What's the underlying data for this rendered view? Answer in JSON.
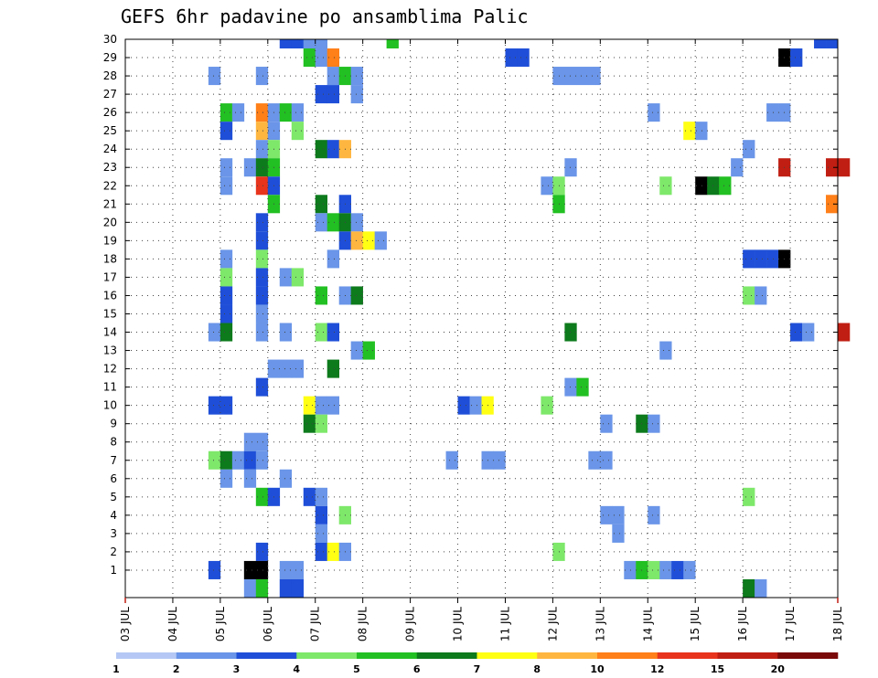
{
  "chart_data": {
    "type": "heatmap",
    "title": "GEFS 6hr padavine po ansamblima Palic",
    "x_tick_labels": [
      "03 JUL",
      "04 JUL",
      "05 JUL",
      "06 JUL",
      "07 JUL",
      "08 JUL",
      "09 JUL",
      "10 JUL",
      "11 JUL",
      "12 JUL",
      "13 JUL",
      "14 JUL",
      "15 JUL",
      "16 JUL",
      "17 JUL",
      "18 JUL"
    ],
    "y_tick_labels": [
      "1",
      "2",
      "3",
      "4",
      "5",
      "6",
      "7",
      "8",
      "9",
      "10",
      "11",
      "12",
      "13",
      "14",
      "15",
      "16",
      "17",
      "18",
      "19",
      "20",
      "21",
      "22",
      "23",
      "24",
      "25",
      "26",
      "27",
      "28",
      "29",
      "30"
    ],
    "y_range": [
      0,
      30
    ],
    "step_hours": 6,
    "grid": "dotted",
    "legend": {
      "placement": "bottom",
      "boundaries": [
        "1",
        "2",
        "3",
        "4",
        "5",
        "6",
        "7",
        "8",
        "10",
        "12",
        "15",
        "20"
      ],
      "colors": [
        "#b5c8f5",
        "#6a95e8",
        "#1f4fd8",
        "#7ee86a",
        "#22c022",
        "#0d7a1c",
        "#ffff14",
        "#ffb640",
        "#ff7f18",
        "#e8341c",
        "#c01e12",
        "#7a0909"
      ]
    },
    "cells": [
      [
        30,
        13,
        2
      ],
      [
        30,
        14,
        2
      ],
      [
        30,
        15,
        1
      ],
      [
        30,
        16,
        1
      ],
      [
        30,
        22,
        4
      ],
      [
        30,
        58,
        2
      ],
      [
        30,
        59,
        2
      ],
      [
        29,
        15,
        4
      ],
      [
        29,
        16,
        1
      ],
      [
        29,
        17,
        8
      ],
      [
        29,
        32,
        2
      ],
      [
        29,
        33,
        2
      ],
      [
        29,
        55,
        12
      ],
      [
        29,
        56,
        2
      ],
      [
        28,
        7,
        1
      ],
      [
        28,
        11,
        1
      ],
      [
        28,
        17,
        1
      ],
      [
        28,
        18,
        4
      ],
      [
        28,
        19,
        1
      ],
      [
        28,
        36,
        1
      ],
      [
        28,
        37,
        1
      ],
      [
        28,
        38,
        1
      ],
      [
        28,
        39,
        1
      ],
      [
        27,
        16,
        2
      ],
      [
        27,
        17,
        2
      ],
      [
        27,
        19,
        1
      ],
      [
        26,
        8,
        4
      ],
      [
        26,
        9,
        1
      ],
      [
        26,
        11,
        8
      ],
      [
        26,
        12,
        1
      ],
      [
        26,
        13,
        4
      ],
      [
        26,
        14,
        1
      ],
      [
        26,
        44,
        1
      ],
      [
        26,
        54,
        1
      ],
      [
        26,
        55,
        1
      ],
      [
        25,
        8,
        2
      ],
      [
        25,
        11,
        7
      ],
      [
        25,
        12,
        1
      ],
      [
        25,
        14,
        3
      ],
      [
        25,
        47,
        6
      ],
      [
        25,
        48,
        1
      ],
      [
        24,
        11,
        1
      ],
      [
        24,
        12,
        3
      ],
      [
        24,
        16,
        5
      ],
      [
        24,
        17,
        2
      ],
      [
        24,
        18,
        7
      ],
      [
        24,
        52,
        1
      ],
      [
        23,
        8,
        1
      ],
      [
        23,
        10,
        1
      ],
      [
        23,
        11,
        5
      ],
      [
        23,
        12,
        4
      ],
      [
        23,
        37,
        1
      ],
      [
        23,
        51,
        1
      ],
      [
        23,
        55,
        10
      ],
      [
        23,
        59,
        10
      ],
      [
        23,
        60,
        10
      ],
      [
        22,
        8,
        1
      ],
      [
        22,
        11,
        9
      ],
      [
        22,
        12,
        2
      ],
      [
        22,
        35,
        1
      ],
      [
        22,
        36,
        3
      ],
      [
        22,
        45,
        3
      ],
      [
        22,
        48,
        12
      ],
      [
        22,
        49,
        5
      ],
      [
        22,
        50,
        4
      ],
      [
        21,
        12,
        4
      ],
      [
        21,
        16,
        5
      ],
      [
        21,
        18,
        2
      ],
      [
        21,
        36,
        4
      ],
      [
        21,
        59,
        8
      ],
      [
        20,
        11,
        2
      ],
      [
        20,
        16,
        1
      ],
      [
        20,
        17,
        4
      ],
      [
        20,
        18,
        5
      ],
      [
        20,
        19,
        1
      ],
      [
        19,
        11,
        2
      ],
      [
        19,
        18,
        2
      ],
      [
        19,
        19,
        7
      ],
      [
        19,
        20,
        6
      ],
      [
        19,
        21,
        1
      ],
      [
        18,
        8,
        1
      ],
      [
        18,
        11,
        3
      ],
      [
        18,
        17,
        1
      ],
      [
        18,
        52,
        2
      ],
      [
        18,
        53,
        2
      ],
      [
        18,
        54,
        2
      ],
      [
        18,
        55,
        12
      ],
      [
        17,
        8,
        3
      ],
      [
        17,
        11,
        2
      ],
      [
        17,
        13,
        1
      ],
      [
        17,
        14,
        3
      ],
      [
        16,
        8,
        2
      ],
      [
        16,
        11,
        2
      ],
      [
        16,
        16,
        4
      ],
      [
        16,
        18,
        1
      ],
      [
        16,
        19,
        5
      ],
      [
        16,
        52,
        3
      ],
      [
        16,
        53,
        1
      ],
      [
        15,
        8,
        2
      ],
      [
        15,
        11,
        1
      ],
      [
        14,
        7,
        1
      ],
      [
        14,
        8,
        5
      ],
      [
        14,
        11,
        1
      ],
      [
        14,
        13,
        1
      ],
      [
        14,
        16,
        3
      ],
      [
        14,
        17,
        2
      ],
      [
        14,
        37,
        5
      ],
      [
        14,
        56,
        2
      ],
      [
        14,
        57,
        1
      ],
      [
        14,
        60,
        10
      ],
      [
        13,
        19,
        1
      ],
      [
        13,
        20,
        4
      ],
      [
        13,
        45,
        1
      ],
      [
        12,
        12,
        1
      ],
      [
        12,
        13,
        1
      ],
      [
        12,
        14,
        1
      ],
      [
        12,
        17,
        5
      ],
      [
        11,
        11,
        2
      ],
      [
        11,
        37,
        1
      ],
      [
        11,
        38,
        4
      ],
      [
        10,
        7,
        2
      ],
      [
        10,
        8,
        2
      ],
      [
        10,
        15,
        6
      ],
      [
        10,
        16,
        1
      ],
      [
        10,
        17,
        1
      ],
      [
        10,
        28,
        2
      ],
      [
        10,
        29,
        1
      ],
      [
        10,
        30,
        6
      ],
      [
        10,
        35,
        3
      ],
      [
        9,
        15,
        5
      ],
      [
        9,
        16,
        3
      ],
      [
        9,
        40,
        1
      ],
      [
        9,
        43,
        5
      ],
      [
        9,
        44,
        1
      ],
      [
        8,
        10,
        1
      ],
      [
        8,
        11,
        1
      ],
      [
        7,
        7,
        3
      ],
      [
        7,
        8,
        5
      ],
      [
        7,
        9,
        1
      ],
      [
        7,
        10,
        2
      ],
      [
        7,
        11,
        1
      ],
      [
        7,
        27,
        1
      ],
      [
        7,
        30,
        1
      ],
      [
        7,
        31,
        1
      ],
      [
        7,
        39,
        1
      ],
      [
        7,
        40,
        1
      ],
      [
        6,
        8,
        1
      ],
      [
        6,
        10,
        1
      ],
      [
        6,
        13,
        1
      ],
      [
        5,
        11,
        4
      ],
      [
        5,
        12,
        2
      ],
      [
        5,
        15,
        2
      ],
      [
        5,
        16,
        1
      ],
      [
        5,
        52,
        3
      ],
      [
        4,
        16,
        2
      ],
      [
        4,
        18,
        3
      ],
      [
        4,
        40,
        1
      ],
      [
        4,
        41,
        1
      ],
      [
        4,
        44,
        1
      ],
      [
        3,
        16,
        1
      ],
      [
        3,
        41,
        1
      ],
      [
        2,
        11,
        2
      ],
      [
        2,
        16,
        2
      ],
      [
        2,
        17,
        6
      ],
      [
        2,
        18,
        1
      ],
      [
        2,
        36,
        3
      ],
      [
        1,
        7,
        2
      ],
      [
        1,
        10,
        12
      ],
      [
        1,
        11,
        12
      ],
      [
        1,
        13,
        1
      ],
      [
        1,
        14,
        1
      ],
      [
        1,
        42,
        1
      ],
      [
        1,
        43,
        4
      ],
      [
        1,
        44,
        3
      ],
      [
        1,
        45,
        1
      ],
      [
        1,
        46,
        2
      ],
      [
        1,
        47,
        1
      ],
      [
        0,
        10,
        1
      ],
      [
        0,
        11,
        4
      ],
      [
        0,
        13,
        2
      ],
      [
        0,
        14,
        2
      ],
      [
        0,
        52,
        5
      ],
      [
        0,
        53,
        1
      ]
    ]
  }
}
